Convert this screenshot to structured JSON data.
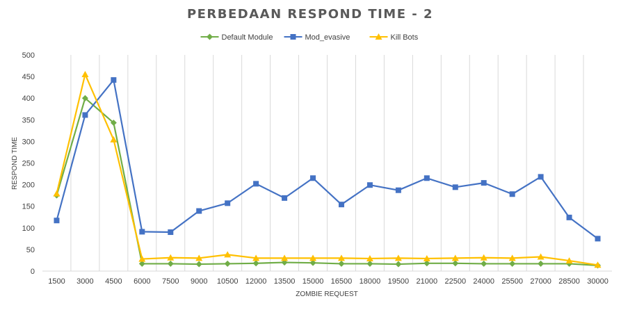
{
  "chart_data": {
    "type": "line",
    "title": "PERBEDAAN RESPOND TIME - 2",
    "xlabel": "ZOMBIE REQUEST",
    "ylabel": "RESPOND TIME",
    "ylim": [
      0,
      500
    ],
    "yticks": [
      0,
      50,
      100,
      150,
      200,
      250,
      300,
      350,
      400,
      450,
      500
    ],
    "grid": "vertical",
    "legend_position": "top",
    "categories": [
      "1500",
      "3000",
      "4500",
      "6000",
      "7500",
      "9000",
      "10500",
      "12000",
      "13500",
      "15000",
      "16500",
      "18000",
      "19500",
      "21000",
      "22500",
      "24000",
      "25500",
      "27000",
      "28500",
      "30000"
    ],
    "series": [
      {
        "name": "Default Module",
        "color": "#70ad47",
        "marker": "diamond",
        "values": [
          175,
          400,
          343,
          17,
          17,
          16,
          17,
          18,
          20,
          19,
          17,
          17,
          16,
          18,
          18,
          17,
          17,
          17,
          17,
          13
        ]
      },
      {
        "name": "Mod_evasive",
        "color": "#4472c4",
        "marker": "square",
        "values": [
          117,
          361,
          442,
          91,
          90,
          139,
          157,
          202,
          169,
          215,
          154,
          199,
          187,
          215,
          194,
          204,
          178,
          218,
          124,
          75
        ]
      },
      {
        "name": "Kill Bots",
        "color": "#ffc000",
        "marker": "triangle",
        "values": [
          179,
          455,
          304,
          28,
          31,
          30,
          38,
          30,
          30,
          30,
          30,
          29,
          30,
          29,
          30,
          31,
          30,
          33,
          24,
          14
        ]
      }
    ]
  }
}
